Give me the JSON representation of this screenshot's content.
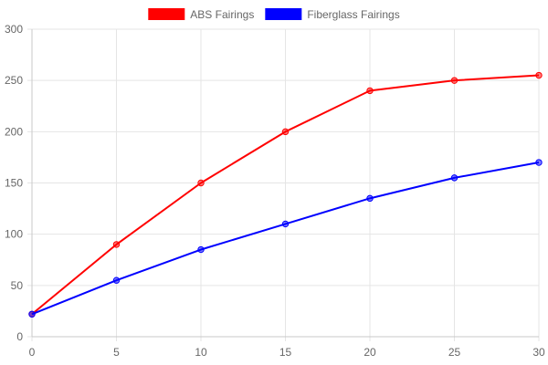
{
  "chart_data": {
    "type": "line",
    "x": [
      0,
      5,
      10,
      15,
      20,
      25,
      30
    ],
    "series": [
      {
        "name": "ABS Fairings",
        "color": "#ff0000",
        "values": [
          22,
          90,
          150,
          200,
          240,
          250,
          255
        ]
      },
      {
        "name": "Fiberglass Fairings",
        "color": "#0000ff",
        "values": [
          22,
          55,
          85,
          110,
          135,
          155,
          170
        ]
      }
    ],
    "xlim": [
      0,
      30
    ],
    "ylim": [
      0,
      300
    ],
    "x_ticks": [
      "0",
      "5",
      "10",
      "15",
      "20",
      "25",
      "30"
    ],
    "y_ticks": [
      "0",
      "50",
      "100",
      "150",
      "200",
      "250",
      "300"
    ],
    "title": "",
    "xlabel": "",
    "ylabel": "",
    "legend_position": "top-center",
    "grid": true
  }
}
